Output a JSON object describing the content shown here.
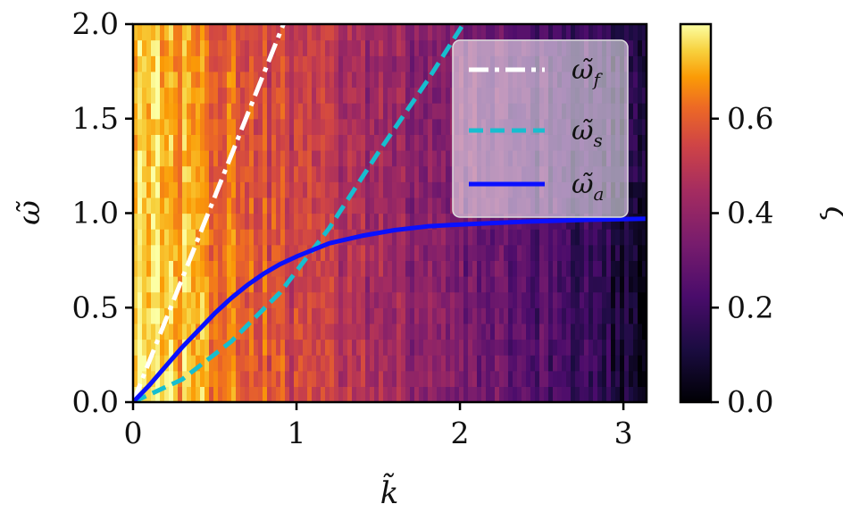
{
  "chart_data": {
    "type": "heatmap",
    "xlabel": "k̃",
    "ylabel": "ω̃",
    "colorbar_label": "ζ",
    "xlim": [
      0,
      3.14159
    ],
    "ylim": [
      0,
      2.0
    ],
    "x_ticks": [
      "0",
      "1",
      "2",
      "3"
    ],
    "y_ticks": [
      "0.0",
      "0.5",
      "1.0",
      "1.5",
      "2.0"
    ],
    "colorbar_range": [
      0,
      0.8
    ],
    "colorbar_ticks": [
      "0.0",
      "0.2",
      "0.4",
      "0.6"
    ],
    "colormap": "inferno",
    "heatmap_description_values": {
      "low_k_high": 0.75,
      "mid_k": 0.45,
      "high_k_low": 0.12
    },
    "legend_position": "upper-right",
    "series": [
      {
        "name": "ω̃_f",
        "symbol": "ω̃",
        "subscript": "f",
        "style": "dash-dot",
        "color": "#ffffff",
        "x": [
          0,
          0.92
        ],
        "y": [
          0,
          2.0
        ]
      },
      {
        "name": "ω̃_s",
        "symbol": "ω̃",
        "subscript": "s",
        "style": "dashed",
        "color": "#17becf",
        "x": [
          0,
          0.3,
          0.6,
          0.9,
          1.2,
          1.5,
          1.8,
          2.02
        ],
        "y": [
          0,
          0.12,
          0.32,
          0.58,
          0.92,
          1.32,
          1.7,
          2.0
        ]
      },
      {
        "name": "ω̃_a",
        "symbol": "ω̃",
        "subscript": "a",
        "style": "solid",
        "color": "#0a10ff",
        "x": [
          0,
          0.1,
          0.2,
          0.3,
          0.4,
          0.5,
          0.6,
          0.7,
          0.8,
          0.9,
          1.0,
          1.2,
          1.4,
          1.6,
          1.8,
          2.0,
          2.4,
          2.8,
          3.14
        ],
        "y": [
          0,
          0.09,
          0.19,
          0.29,
          0.38,
          0.47,
          0.55,
          0.62,
          0.68,
          0.73,
          0.77,
          0.84,
          0.88,
          0.91,
          0.93,
          0.94,
          0.955,
          0.965,
          0.97
        ]
      }
    ]
  }
}
